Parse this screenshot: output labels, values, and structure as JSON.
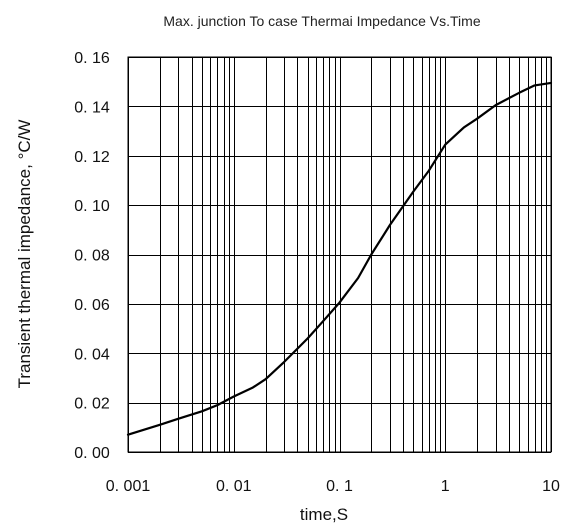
{
  "chart_data": {
    "type": "line",
    "title": "Max. junction To case Thermai Impedance Vs.Time",
    "xlabel": "time,S",
    "ylabel": "Transient thermal impedance, °C/W",
    "x_scale": "log",
    "xlim": [
      0.001,
      10
    ],
    "ylim": [
      0,
      0.16
    ],
    "grid": true,
    "x_ticks": [
      0.001,
      0.01,
      0.1,
      1,
      10
    ],
    "x_tick_labels": [
      "0. 001",
      "0. 01",
      "0. 1",
      "1",
      "10"
    ],
    "y_ticks": [
      0,
      0.02,
      0.04,
      0.06,
      0.08,
      0.1,
      0.12,
      0.14,
      0.16
    ],
    "y_tick_labels": [
      "0. 00",
      "0. 02",
      "0. 04",
      "0. 06",
      "0. 08",
      "0. 10",
      "0. 12",
      "0. 14",
      "0. 16"
    ],
    "series": [
      {
        "x": [
          0.001,
          0.002,
          0.003,
          0.005,
          0.007,
          0.01,
          0.015,
          0.02,
          0.03,
          0.05,
          0.07,
          0.1,
          0.15,
          0.2,
          0.3,
          0.5,
          0.7,
          1,
          1.5,
          2,
          3,
          5,
          7,
          10
        ],
        "y": [
          0.007,
          0.011,
          0.0135,
          0.0165,
          0.019,
          0.0225,
          0.026,
          0.0295,
          0.0365,
          0.046,
          0.053,
          0.0605,
          0.0705,
          0.08,
          0.092,
          0.1055,
          0.114,
          0.1245,
          0.1315,
          0.135,
          0.1405,
          0.1455,
          0.1485,
          0.1495
        ],
        "color": "#000000"
      }
    ]
  }
}
